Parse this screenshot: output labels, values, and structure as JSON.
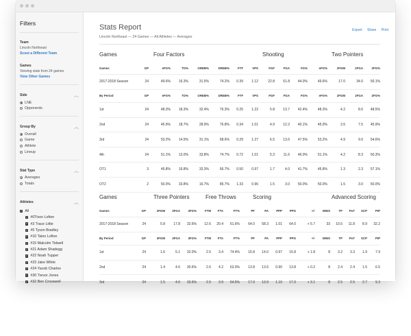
{
  "sidebar": {
    "title": "Filters",
    "team": {
      "heading": "Team",
      "name": "Lincoln Northeast",
      "link": "Scout a Different Team"
    },
    "games": {
      "heading": "Games",
      "text": "Viewing stats from 24 games",
      "link": "View Other Games"
    },
    "side": {
      "heading": "Side",
      "options": [
        "LNE",
        "Opponents"
      ],
      "selected": 0
    },
    "groupby": {
      "heading": "Group By",
      "options": [
        "Overall",
        "Game",
        "Athlete",
        "Lineup"
      ],
      "selected": 0
    },
    "stattype": {
      "heading": "Stat Type",
      "options": [
        "Averages",
        "Totals"
      ],
      "selected": 0
    },
    "athletes": {
      "heading": "Athletes",
      "all_label": "All",
      "items": [
        "#0Tivon Lofton",
        "#3 Trace Little",
        "#5 Tyson Bradley",
        "#10 Talon Lofton",
        "#15 Malcolm Tidwell",
        "#21 Adam Shadegg",
        "#22 Noah Tupper",
        "#23 Jake White",
        "#24 Yacob Charles",
        "#30 Trevor Jones",
        "#32 Ben Crosswell"
      ]
    }
  },
  "header": {
    "title": "Stats Report",
    "subtitle": "Lincoln Northeast — 24 Games — All Athletes — Averages",
    "actions": [
      "Export",
      "Share",
      "Print"
    ]
  },
  "table1": {
    "groups": [
      "Games",
      "Four Factors",
      "Shooting",
      "Two Pointers"
    ],
    "columns": [
      "Games",
      "GP",
      "eFG%",
      "TO%",
      "OREB%",
      "DREB%",
      "FTF",
      "VPS",
      "FGF",
      "FGA",
      "FG%",
      "eFG%",
      "2FGM",
      "2FGA",
      "2FG%"
    ],
    "period_columns": [
      "By Period",
      "GP",
      "eFG%",
      "TO%",
      "OREB%",
      "DREB%",
      "FTF",
      "VPS",
      "FGF",
      "FGA",
      "FG%",
      "eFG%",
      "2FGM",
      "2FGA",
      "2FG%"
    ],
    "season": [
      "2017-2018 Season",
      "24",
      "49.6%",
      "16.3%",
      "31.5%",
      "74.2%",
      "0.39",
      "1.12",
      "22.8",
      "51.8",
      "44.0%",
      "49.6%",
      "17.0",
      "34.0",
      "50.1%"
    ],
    "periods": [
      [
        "1st",
        "24",
        "48.3%",
        "18.3%",
        "32.4%",
        "76.3%",
        "0.25",
        "1.22",
        "5.8",
        "13.7",
        "42.4%",
        "48.3%",
        "4.2",
        "8.6",
        "48.5%"
      ],
      [
        "2nd",
        "24",
        "45.9%",
        "18.7%",
        "28.9%",
        "76.8%",
        "0.34",
        "1.01",
        "4.9",
        "12.2",
        "40.1%",
        "45.9%",
        "3.5",
        "7.5",
        "45.9%"
      ],
      [
        "3rd",
        "24",
        "53.2%",
        "14.5%",
        "31.1%",
        "68.6%",
        "0.29",
        "1.27",
        "6.5",
        "13.6",
        "47.5%",
        "53.2%",
        "4.9",
        "9.0",
        "54.6%"
      ],
      [
        "4th",
        "24",
        "51.1%",
        "13.0%",
        "33.8%",
        "74.7%",
        "0.72",
        "1.01",
        "5.3",
        "11.6",
        "46.0%",
        "51.1%",
        "4.2",
        "8.3",
        "50.3%"
      ],
      [
        "OT1",
        "3",
        "45.8%",
        "16.8%",
        "33.3%",
        "66.7%",
        "0.50",
        "0.97",
        "1.7",
        "4.0",
        "41.7%",
        "45.8%",
        "1.3",
        "2.3",
        "57.1%"
      ],
      [
        "OT2",
        "2",
        "50.0%",
        "33.8%",
        "16.7%",
        "85.7%",
        "1.33",
        "0.96",
        "1.5",
        "3.0",
        "50.0%",
        "50.0%",
        "1.5",
        "3.0",
        "50.0%"
      ]
    ]
  },
  "table2": {
    "groups": [
      "Games",
      "Three Pointers",
      "Free Throws",
      "Scoring",
      "Advanced Scoring"
    ],
    "columns": [
      "Games",
      "GP",
      "3FGM",
      "3FGA",
      "3FG%",
      "FTM",
      "FTA",
      "FT%",
      "PF",
      "PA",
      "PPP",
      "PPG",
      "+/-",
      "MINS",
      "TP",
      "PoT",
      "SCP",
      "PIP"
    ],
    "period_columns": [
      "By Period",
      "GP",
      "3FGM",
      "3FGA",
      "3FG%",
      "FTM",
      "FTA",
      "FT%",
      "PF",
      "PA",
      "PPP",
      "PPG",
      "+/-",
      "MINS",
      "TP",
      "PoT",
      "SCP",
      "PIP"
    ],
    "season": [
      "2017-2018 Season",
      "24",
      "5.8",
      "17.8",
      "32.6%",
      "12.6",
      "20.4",
      "61.6%",
      "64.0",
      "58.3",
      "1.01",
      "64.0",
      "+ 5.7",
      "33",
      "10.5",
      "11.8",
      "8.9",
      "32.2"
    ],
    "periods": [
      [
        "1st",
        "24",
        "1.6",
        "5.1",
        "32.0%",
        "2.5",
        "3.4",
        "74.4%",
        "15.8",
        "14.0",
        "0.97",
        "15.8",
        "+ 1.8",
        "8",
        "3.2",
        "3.3",
        "1.9",
        "7.9"
      ],
      [
        "2nd",
        "24",
        "1.4",
        "4.6",
        "30.6%",
        "2.6",
        "4.2",
        "63.0%",
        "13.8",
        "13.6",
        "0.90",
        "13.8",
        "+ 0.2",
        "8",
        "2.4",
        "2.4",
        "1.5",
        "6.5"
      ],
      [
        "3rd",
        "24",
        "1.5",
        "4.6",
        "33.6%",
        "2.5",
        "3.9",
        "64.5%",
        "17.0",
        "13.9",
        "1.10",
        "17.0",
        "+ 3.1",
        "8",
        "2.5",
        "2.5",
        "2.7",
        "9.3"
      ]
    ]
  }
}
